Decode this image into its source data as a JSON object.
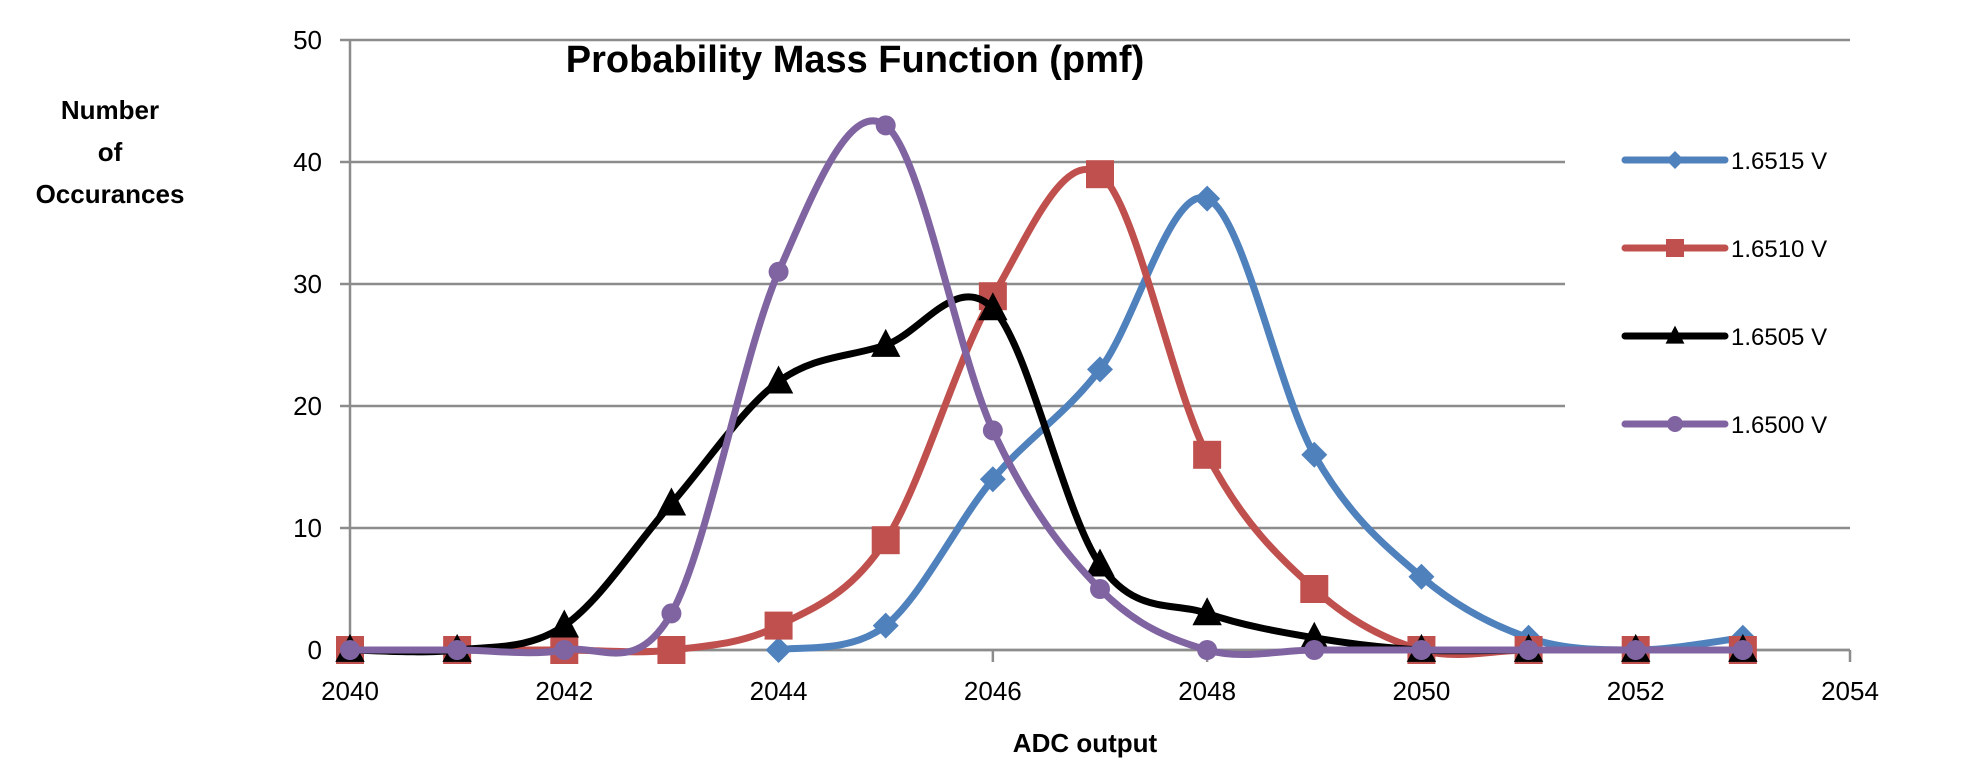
{
  "chart_data": {
    "type": "line",
    "title": "Probability Mass Function (pmf)",
    "xlabel": "ADC output",
    "ylabel": "Number of Occurances",
    "ylabel_lines": [
      "Number",
      "of",
      "Occurances"
    ],
    "xlim": [
      2040,
      2054
    ],
    "ylim": [
      0,
      50
    ],
    "xticks": [
      2040,
      2042,
      2044,
      2046,
      2048,
      2050,
      2052,
      2054
    ],
    "yticks": [
      0,
      10,
      20,
      30,
      40,
      50
    ],
    "grid": "horizontal",
    "legend_position": "right",
    "series": [
      {
        "name": "1.6515 V",
        "color": "#4F81BD",
        "marker": "diamond",
        "x": [
          2044,
          2045,
          2046,
          2047,
          2048,
          2049,
          2050,
          2051,
          2052,
          2053
        ],
        "y": [
          0,
          2,
          14,
          23,
          37,
          16,
          6,
          1,
          0,
          1
        ]
      },
      {
        "name": "1.6510 V",
        "color": "#C0504D",
        "marker": "square",
        "x": [
          2040,
          2041,
          2042,
          2043,
          2044,
          2045,
          2046,
          2047,
          2048,
          2049,
          2050,
          2051,
          2052,
          2053
        ],
        "y": [
          0,
          0,
          0,
          0,
          2,
          9,
          29,
          39,
          16,
          5,
          0,
          0,
          0,
          0
        ]
      },
      {
        "name": "1.6505 V",
        "color": "#000000",
        "marker": "triangle",
        "x": [
          2040,
          2041,
          2042,
          2043,
          2044,
          2045,
          2046,
          2047,
          2048,
          2049,
          2050,
          2051,
          2052,
          2053
        ],
        "y": [
          0,
          0,
          2,
          12,
          22,
          25,
          28,
          7,
          3,
          1,
          0,
          0,
          0,
          0
        ]
      },
      {
        "name": "1.6500 V",
        "color": "#8064A2",
        "marker": "circle",
        "x": [
          2040,
          2041,
          2042,
          2043,
          2044,
          2045,
          2046,
          2047,
          2048,
          2049,
          2050,
          2051,
          2052,
          2053
        ],
        "y": [
          0,
          0,
          0,
          3,
          31,
          43,
          18,
          5,
          0,
          0,
          0,
          0,
          0,
          0
        ]
      }
    ]
  }
}
